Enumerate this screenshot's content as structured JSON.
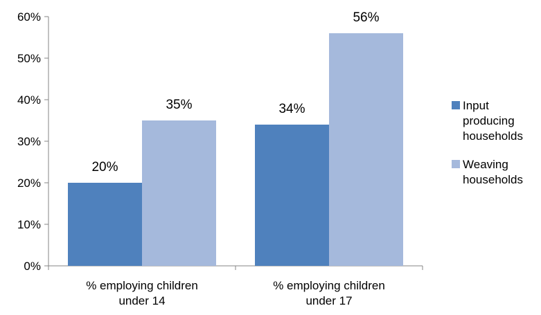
{
  "chart_data": {
    "type": "bar",
    "title": "",
    "xlabel": "",
    "ylabel": "",
    "ylim": [
      0,
      0.6
    ],
    "yticks": [
      0,
      0.1,
      0.2,
      0.3,
      0.4,
      0.5,
      0.6
    ],
    "ytick_labels": [
      "0%",
      "10%",
      "20%",
      "30%",
      "40%",
      "50%",
      "60%"
    ],
    "grid": false,
    "legend_position": "right",
    "categories": [
      [
        "% employing children",
        "under 14"
      ],
      [
        "%  employing children",
        "under 17"
      ]
    ],
    "series": [
      {
        "name": [
          "Input",
          "producing",
          "households"
        ],
        "color": "#4f81bd",
        "values": [
          0.2,
          0.34
        ],
        "labels": [
          "20%",
          "34%"
        ]
      },
      {
        "name": [
          "Weaving",
          "households"
        ],
        "color": "#a5b9dc",
        "values": [
          0.35,
          0.56
        ],
        "labels": [
          "35%",
          "56%"
        ]
      }
    ]
  }
}
